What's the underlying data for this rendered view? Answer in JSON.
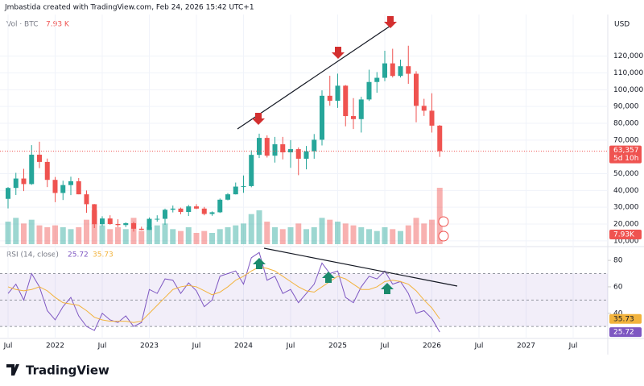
{
  "header": {
    "credit": "Jmbastida created with TradingView.com, Feb 24, 2026 15:42 UTC+1"
  },
  "footer": {
    "brand": "TradingView"
  },
  "chart_data": [
    {
      "type": "candlestick",
      "legend_title": "Vol · BTC",
      "legend_value": "7.93 K",
      "currency": "USD",
      "up_color": "#26a69a",
      "down_color": "#ef5350",
      "x": [
        "2021-07",
        "2021-08",
        "2021-09",
        "2021-10",
        "2021-11",
        "2021-12",
        "2022-01",
        "2022-02",
        "2022-03",
        "2022-04",
        "2022-05",
        "2022-06",
        "2022-07",
        "2022-08",
        "2022-09",
        "2022-10",
        "2022-11",
        "2022-12",
        "2023-01",
        "2023-02",
        "2023-03",
        "2023-04",
        "2023-05",
        "2023-06",
        "2023-07",
        "2023-08",
        "2023-09",
        "2023-10",
        "2023-11",
        "2023-12",
        "2024-01",
        "2024-02",
        "2024-03",
        "2024-04",
        "2024-05",
        "2024-06",
        "2024-07",
        "2024-08",
        "2024-09",
        "2024-10",
        "2024-11",
        "2024-12",
        "2025-01",
        "2025-02",
        "2025-03",
        "2025-04",
        "2025-05",
        "2025-06",
        "2025-07",
        "2025-08",
        "2025-09",
        "2025-10",
        "2025-11",
        "2025-12",
        "2026-01",
        "2026-02"
      ],
      "open": [
        35000,
        41500,
        47100,
        43800,
        61300,
        57000,
        46300,
        38500,
        43200,
        45500,
        37700,
        31800,
        19900,
        23300,
        20000,
        19400,
        20500,
        17200,
        16500,
        23100,
        23100,
        28500,
        29200,
        27200,
        30500,
        29200,
        26000,
        27000,
        34500,
        37700,
        42300,
        42600,
        61200,
        71300,
        60700,
        67500,
        62700,
        64600,
        58900,
        63300,
        70200,
        96400,
        93400,
        102400,
        84300,
        82500,
        94200,
        104600,
        107100,
        115700,
        108200,
        114000,
        109500,
        90400,
        87500,
        78600
      ],
      "high": [
        42000,
        50500,
        52900,
        67000,
        69000,
        59000,
        48000,
        45800,
        48200,
        47400,
        40000,
        31900,
        24600,
        25200,
        22800,
        21000,
        21400,
        18400,
        23900,
        25200,
        29200,
        31000,
        29800,
        31400,
        31800,
        30200,
        27500,
        35200,
        38400,
        44700,
        48900,
        63900,
        73800,
        72800,
        71900,
        71900,
        70000,
        65600,
        66500,
        73600,
        99600,
        108300,
        109600,
        102800,
        95000,
        95800,
        111900,
        110500,
        123200,
        124400,
        117900,
        126200,
        111000,
        94600,
        97900,
        79000
      ],
      "low": [
        29300,
        37300,
        39600,
        43300,
        53300,
        42000,
        33000,
        34300,
        37200,
        37700,
        26700,
        17600,
        18800,
        19600,
        18200,
        18200,
        15500,
        16300,
        16500,
        21400,
        19600,
        26900,
        25800,
        24800,
        28900,
        25200,
        24900,
        26600,
        34100,
        37600,
        38600,
        41900,
        59300,
        59600,
        56600,
        58500,
        53500,
        49100,
        52600,
        58900,
        66800,
        90500,
        89200,
        78200,
        76600,
        74500,
        93300,
        98200,
        105100,
        107300,
        107300,
        103500,
        80600,
        84400,
        74500,
        60000
      ],
      "close": [
        41500,
        47100,
        43800,
        61300,
        57000,
        46300,
        38500,
        43200,
        45500,
        37700,
        31800,
        19900,
        23300,
        20000,
        19400,
        20500,
        17200,
        16500,
        23100,
        23100,
        28500,
        29200,
        27200,
        30500,
        29200,
        26000,
        27000,
        34500,
        37700,
        42300,
        42600,
        61200,
        71300,
        60700,
        67500,
        62700,
        64600,
        58900,
        63300,
        70200,
        96400,
        93400,
        102400,
        84300,
        82500,
        94200,
        104600,
        107100,
        115700,
        108200,
        114000,
        109500,
        90400,
        87500,
        78600,
        63357
      ],
      "volume": {
        "values": [
          12,
          14,
          11,
          13,
          10,
          9,
          10,
          9,
          8,
          9,
          13,
          18,
          10,
          8,
          9,
          8,
          14,
          7,
          9,
          10,
          11,
          8,
          7,
          9,
          6,
          7,
          6,
          8,
          9,
          10,
          11,
          16,
          18,
          12,
          9,
          8,
          9,
          11,
          8,
          9,
          14,
          13,
          12,
          11,
          10,
          9,
          8,
          7,
          9,
          8,
          7,
          10,
          14,
          11,
          13,
          30
        ],
        "label": "7.93K"
      },
      "ylim": [
        8000,
        140000
      ],
      "yticks": [
        {
          "value": 10000,
          "label": "10,000"
        },
        {
          "value": 20000,
          "label": "20,000"
        },
        {
          "value": 30000,
          "label": "30,000"
        },
        {
          "value": 40000,
          "label": "40,000"
        },
        {
          "value": 50000,
          "label": "50,000"
        },
        {
          "value": 70000,
          "label": "70,000"
        },
        {
          "value": 80000,
          "label": "80,000"
        },
        {
          "value": 90000,
          "label": "90,000"
        },
        {
          "value": 100000,
          "label": "100,000"
        },
        {
          "value": 110000,
          "label": "110,000"
        },
        {
          "value": 120000,
          "label": "120,000"
        }
      ],
      "last_price": {
        "value": 63357,
        "label": "63,357"
      },
      "countdown": "5d 10h",
      "xticks": [
        {
          "value": "2021-07",
          "label": "Jul"
        },
        {
          "value": "2022-01",
          "label": "2022"
        },
        {
          "value": "2022-07",
          "label": "Jul"
        },
        {
          "value": "2023-01",
          "label": "2023"
        },
        {
          "value": "2023-07",
          "label": "Jul"
        },
        {
          "value": "2024-01",
          "label": "2024"
        },
        {
          "value": "2024-07",
          "label": "Jul"
        },
        {
          "value": "2025-01",
          "label": "2025"
        },
        {
          "value": "2025-07",
          "label": "Jul"
        },
        {
          "value": "2026-01",
          "label": "2026"
        },
        {
          "value": "2026-07",
          "label": "Jul"
        },
        {
          "value": "2027-01",
          "label": "2027"
        },
        {
          "value": "2027-07",
          "label": "Jul"
        }
      ]
    },
    {
      "type": "line",
      "title": "RSI (14, close)",
      "series": [
        {
          "color": "#7e57c2",
          "values": [
            55,
            62,
            50,
            70,
            60,
            42,
            35,
            45,
            52,
            38,
            30,
            27,
            40,
            35,
            33,
            38,
            30,
            33,
            58,
            55,
            66,
            65,
            55,
            63,
            57,
            45,
            50,
            68,
            70,
            72,
            62,
            82,
            86,
            65,
            68,
            55,
            58,
            48,
            55,
            62,
            78,
            70,
            72,
            52,
            48,
            60,
            68,
            66,
            72,
            62,
            64,
            55,
            40,
            42,
            36,
            25.72
          ]
        },
        {
          "color": "#f2b33d",
          "values": [
            60,
            58,
            57,
            58,
            60,
            57,
            52,
            48,
            47,
            46,
            42,
            37,
            35,
            34,
            34,
            34,
            33,
            34,
            40,
            46,
            52,
            58,
            60,
            61,
            60,
            57,
            54,
            56,
            60,
            65,
            68,
            72,
            75,
            74,
            72,
            68,
            64,
            60,
            57,
            56,
            60,
            64,
            68,
            66,
            62,
            58,
            58,
            60,
            64,
            65,
            64,
            62,
            57,
            50,
            44,
            35.73
          ]
        }
      ],
      "ylim": [
        24,
        88
      ],
      "yticks": [
        40,
        60,
        80
      ],
      "band": [
        30,
        70
      ],
      "levels": [
        30,
        50,
        70
      ]
    }
  ]
}
